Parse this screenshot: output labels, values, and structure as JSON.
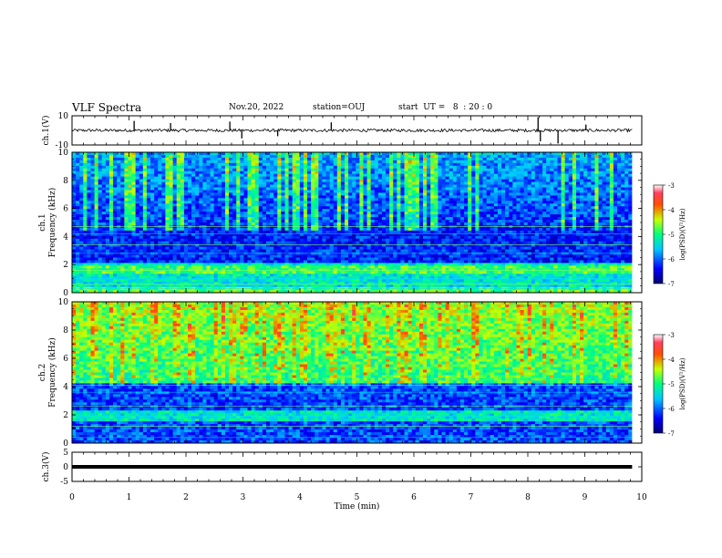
{
  "header": {
    "title": "VLF Spectra",
    "date": "Nov.20, 2022",
    "station": "station=OUJ",
    "start_ut": "start  UT =   8  : 20 : 0"
  },
  "chart_data": [
    {
      "type": "line",
      "name": "ch1-waveform",
      "ylabel": "ch.1(V)",
      "ylim": [
        -10,
        10
      ],
      "yticks": [
        "10",
        "-10"
      ],
      "xlim": [
        0,
        10
      ],
      "trace_extent_min": [
        0,
        9.83
      ],
      "baseline_v": 0,
      "noise_v": 1.0,
      "spikes": [
        {
          "t": 1.09,
          "v": 6.5
        },
        {
          "t": 1.73,
          "v": 5.0
        },
        {
          "t": 2.77,
          "v": 6.0
        },
        {
          "t": 2.98,
          "v": -5.5
        },
        {
          "t": 3.61,
          "v": -4.0
        },
        {
          "t": 4.55,
          "v": 5.5
        },
        {
          "t": 8.18,
          "v": 9.0
        },
        {
          "t": 8.22,
          "v": -7.5
        },
        {
          "t": 8.53,
          "v": -9.0
        },
        {
          "t": 9.02,
          "v": 4.0
        }
      ]
    },
    {
      "type": "heatmap",
      "name": "ch1-spectrogram",
      "ylabel": "ch.1\nFrequency (kHz)",
      "ylim": [
        0,
        10
      ],
      "yticks": [
        "0",
        "2",
        "4",
        "6",
        "8",
        "10"
      ],
      "xlim": [
        0,
        10
      ],
      "data_extent_min": [
        0,
        9.83
      ],
      "colorbar": {
        "label": "log(PSD)(V²/Hz)",
        "range": [
          -7,
          -3
        ],
        "ticks": [
          "-3",
          "-4",
          "-5",
          "-6",
          "-7"
        ]
      },
      "description_level": "strong below 2 kHz, broadband vertical sferics above 5 kHz"
    },
    {
      "type": "heatmap",
      "name": "ch2-spectrogram",
      "ylabel": "ch.2\nFrequency (kHz)",
      "ylim": [
        0,
        10
      ],
      "yticks": [
        "0",
        "2",
        "4",
        "6",
        "8",
        "10"
      ],
      "xlim": [
        0,
        10
      ],
      "data_extent_min": [
        0,
        9.83
      ],
      "colorbar": {
        "label": "log(PSD)(V²/Hz)",
        "range": [
          -7,
          -3
        ],
        "ticks": [
          "-3",
          "-4",
          "-5",
          "-6",
          "-7"
        ]
      },
      "description_level": "high (yellow/red) above 4 kHz, blue below 4 kHz"
    },
    {
      "type": "line",
      "name": "ch3-waveform",
      "ylabel": "ch.3(V)",
      "ylim": [
        -5,
        5
      ],
      "yticks": [
        "5",
        "0",
        "-5"
      ],
      "xlim": [
        0,
        10
      ],
      "trace_extent_min": [
        0,
        9.83
      ],
      "baseline_v": 0
    }
  ],
  "xaxis": {
    "label": "Time  (min)",
    "ticks": [
      "0",
      "1",
      "2",
      "3",
      "4",
      "5",
      "6",
      "7",
      "8",
      "9",
      "10"
    ]
  }
}
